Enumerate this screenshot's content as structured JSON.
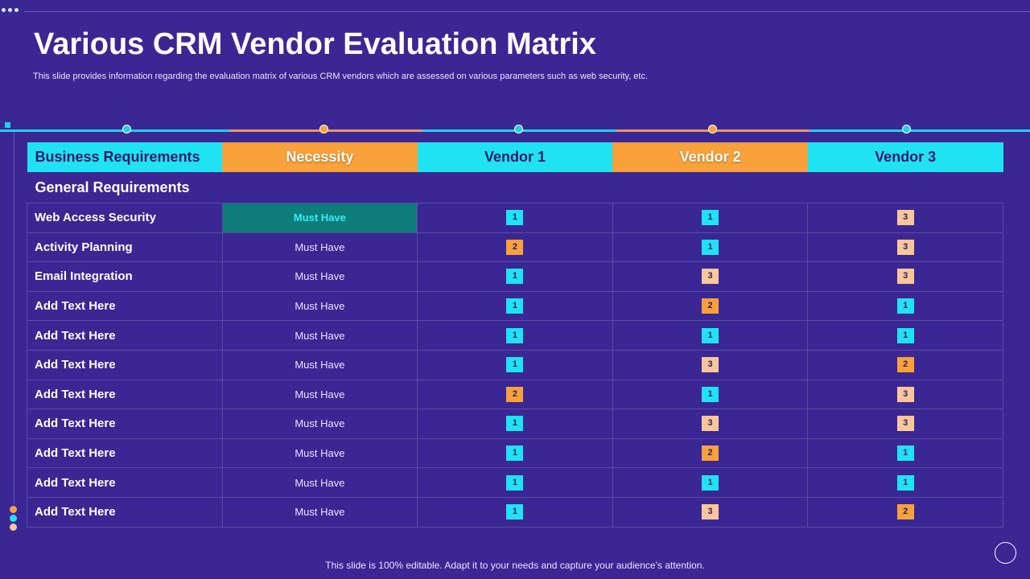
{
  "title": "Various CRM Vendor Evaluation Matrix",
  "subtitle": "This slide provides information regarding the evaluation matrix of various CRM vendors which are assessed on various parameters such as web security, etc.",
  "colors": {
    "background": "#3b2793",
    "cyan": "#1fe3f2",
    "orange": "#f9a13a",
    "peach": "#fbc79a",
    "teal": "#0e7d7a"
  },
  "table": {
    "headers": [
      "Business Requirements",
      "Necessity",
      "Vendor 1",
      "Vendor 2",
      "Vendor 3"
    ],
    "section": "General Requirements",
    "rows": [
      {
        "requirement": "Web Access Security",
        "necessity": "Must Have",
        "v1": "1",
        "v2": "1",
        "v3": "3"
      },
      {
        "requirement": "Activity Planning",
        "necessity": "Must Have",
        "v1": "2",
        "v2": "1",
        "v3": "3"
      },
      {
        "requirement": "Email Integration",
        "necessity": "Must Have",
        "v1": "1",
        "v2": "3",
        "v3": "3"
      },
      {
        "requirement": "Add Text Here",
        "necessity": "Must Have",
        "v1": "1",
        "v2": "2",
        "v3": "1"
      },
      {
        "requirement": "Add Text Here",
        "necessity": "Must Have",
        "v1": "1",
        "v2": "1",
        "v3": "1"
      },
      {
        "requirement": "Add Text Here",
        "necessity": "Must Have",
        "v1": "1",
        "v2": "3",
        "v3": "2"
      },
      {
        "requirement": "Add Text Here",
        "necessity": "Must Have",
        "v1": "2",
        "v2": "1",
        "v3": "3"
      },
      {
        "requirement": "Add Text Here",
        "necessity": "Must Have",
        "v1": "1",
        "v2": "3",
        "v3": "3"
      },
      {
        "requirement": "Add Text Here",
        "necessity": "Must Have",
        "v1": "1",
        "v2": "2",
        "v3": "1"
      },
      {
        "requirement": "Add Text Here",
        "necessity": "Must Have",
        "v1": "1",
        "v2": "1",
        "v3": "1"
      },
      {
        "requirement": "Add Text Here",
        "necessity": "Must Have",
        "v1": "1",
        "v2": "3",
        "v3": "2"
      }
    ]
  },
  "footer": "This slide is 100% editable. Adapt it to your needs and capture your audience’s attention."
}
